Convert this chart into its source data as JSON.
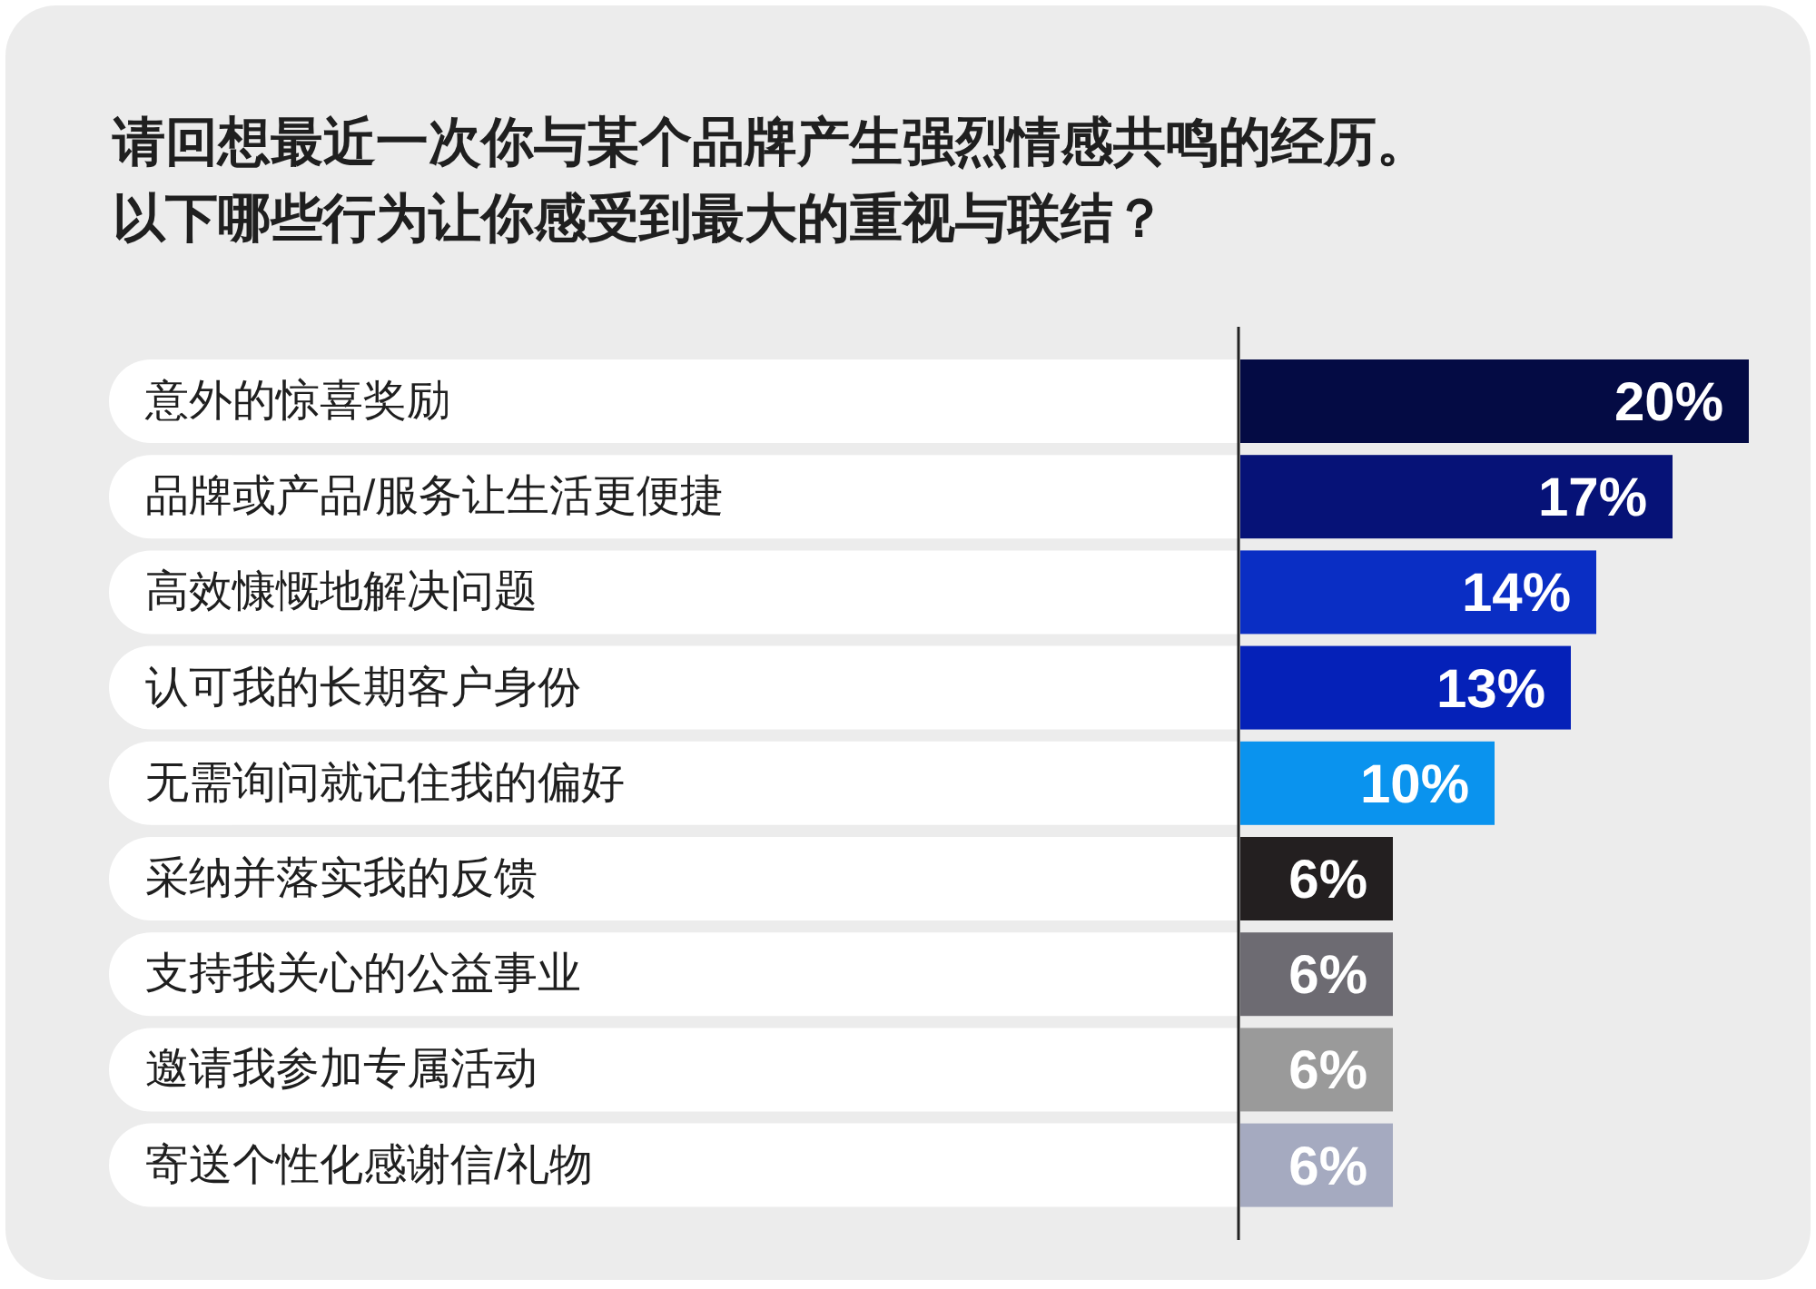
{
  "chart_data": {
    "type": "bar",
    "orientation": "horizontal",
    "title": "请回想最近一次你与某个品牌产生强烈情感共鸣的经历。以下哪些行为让你感受到最大的重视与联结？",
    "categories": [
      "意外的惊喜奖励",
      "品牌或产品/服务让生活更便捷",
      "高效慷慨地解决问题",
      "认可我的长期客户身份",
      "无需询问就记住我的偏好",
      "采纳并落实我的反馈",
      "支持我关心的公益事业",
      "邀请我参加专属活动",
      "寄送个性化感谢信/礼物"
    ],
    "values": [
      20,
      17,
      14,
      13,
      10,
      6,
      6,
      6,
      6
    ],
    "colors": [
      "#040b44",
      "#061277",
      "#0a2ec4",
      "#0521b8",
      "#0a93ee",
      "#231f20",
      "#6d6b72",
      "#9a9a9a",
      "#a5aac0"
    ],
    "value_labels": [
      "20%",
      "17%",
      "14%",
      "13%",
      "10%",
      "6%",
      "6%",
      "6%",
      "6%"
    ],
    "grid": false
  }
}
